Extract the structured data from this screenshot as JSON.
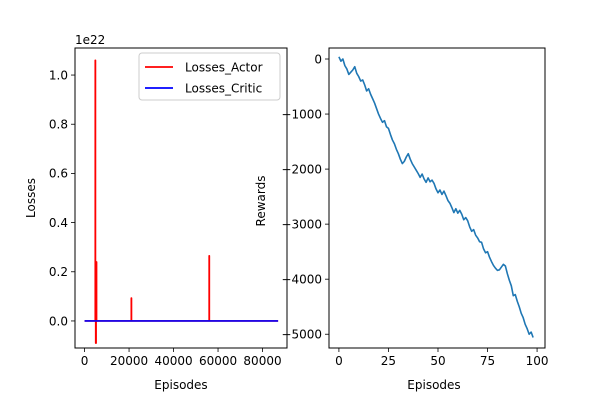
{
  "chart_data": [
    {
      "type": "line",
      "xlabel": "Episodes",
      "ylabel": "Losses",
      "y_offset_text": "1e22",
      "xlim": [
        -4300,
        91000
      ],
      "ylim": [
        -0.11,
        1.11
      ],
      "x_ticks": [
        0,
        20000,
        40000,
        60000,
        80000
      ],
      "x_tick_labels": [
        "0",
        "20000",
        "40000",
        "60000",
        "80000"
      ],
      "y_ticks": [
        0.0,
        0.2,
        0.4,
        0.6,
        0.8,
        1.0
      ],
      "y_tick_labels": [
        "0.0",
        "0.2",
        "0.4",
        "0.6",
        "0.8",
        "1.0"
      ],
      "grid": false,
      "legend_position": "top-right",
      "series": [
        {
          "name": "Losses_Actor",
          "color": "#ff0000",
          "x": [
            0,
            4800,
            4800,
            4900,
            4900,
            5000,
            5000,
            5200,
            5200,
            5300,
            5300,
            5400,
            5400,
            21000,
            21000,
            21100,
            21100,
            56000,
            56000,
            56100,
            56100,
            87000
          ],
          "y": [
            0,
            0,
            1.06,
            1.06,
            0,
            0,
            -0.09,
            -0.09,
            0,
            0,
            0.24,
            0.24,
            0,
            0,
            0.093,
            0.093,
            0,
            0,
            0.265,
            0.265,
            0,
            0
          ]
        },
        {
          "name": "Losses_Critic",
          "color": "#0000ff",
          "x": [
            0,
            87000
          ],
          "y": [
            0,
            0
          ]
        }
      ]
    },
    {
      "type": "line",
      "xlabel": "Episodes",
      "ylabel": "Rewards",
      "xlim": [
        -5,
        104
      ],
      "ylim": [
        -5250,
        200
      ],
      "x_ticks": [
        0,
        25,
        50,
        75,
        100
      ],
      "x_tick_labels": [
        "0",
        "25",
        "50",
        "75",
        "100"
      ],
      "y_ticks": [
        0,
        -1000,
        -2000,
        -3000,
        -4000,
        -5000
      ],
      "y_tick_labels": [
        "0",
        "−1000",
        "−2000",
        "−3000",
        "−4000",
        "−5000"
      ],
      "grid": false,
      "series": [
        {
          "color": "#1f77b4",
          "x": [
            0,
            1,
            2,
            3,
            4,
            5,
            6,
            7,
            8,
            9,
            10,
            11,
            12,
            13,
            14,
            15,
            16,
            17,
            18,
            19,
            20,
            21,
            22,
            23,
            24,
            25,
            26,
            27,
            28,
            29,
            30,
            31,
            32,
            33,
            34,
            35,
            36,
            37,
            38,
            39,
            40,
            41,
            42,
            43,
            44,
            45,
            46,
            47,
            48,
            49,
            50,
            51,
            52,
            53,
            54,
            55,
            56,
            57,
            58,
            59,
            60,
            61,
            62,
            63,
            64,
            65,
            66,
            67,
            68,
            69,
            70,
            71,
            72,
            73,
            74,
            75,
            76,
            77,
            78,
            79,
            80,
            81,
            82,
            83,
            84,
            85,
            86,
            87,
            88,
            89,
            90,
            91,
            92,
            93,
            94,
            95,
            96,
            97,
            98
          ],
          "y": [
            40,
            -40,
            0,
            -120,
            -180,
            -280,
            -240,
            -200,
            -140,
            -260,
            -320,
            -400,
            -380,
            -470,
            -580,
            -540,
            -640,
            -720,
            -800,
            -900,
            -1000,
            -1080,
            -1150,
            -1120,
            -1230,
            -1260,
            -1370,
            -1470,
            -1540,
            -1640,
            -1720,
            -1820,
            -1900,
            -1860,
            -1780,
            -1720,
            -1820,
            -1900,
            -1960,
            -2020,
            -2080,
            -2150,
            -2090,
            -2180,
            -2240,
            -2160,
            -2230,
            -2200,
            -2260,
            -2360,
            -2430,
            -2380,
            -2460,
            -2400,
            -2480,
            -2570,
            -2620,
            -2700,
            -2790,
            -2720,
            -2800,
            -2750,
            -2820,
            -2920,
            -2880,
            -2940,
            -3050,
            -3130,
            -3100,
            -3200,
            -3250,
            -3320,
            -3330,
            -3450,
            -3520,
            -3500,
            -3600,
            -3680,
            -3750,
            -3800,
            -3840,
            -3830,
            -3780,
            -3730,
            -3760,
            -3900,
            -4020,
            -4120,
            -4300,
            -4280,
            -4400,
            -4500,
            -4620,
            -4700,
            -4820,
            -4900,
            -5000,
            -4960,
            -5060
          ]
        }
      ]
    }
  ]
}
